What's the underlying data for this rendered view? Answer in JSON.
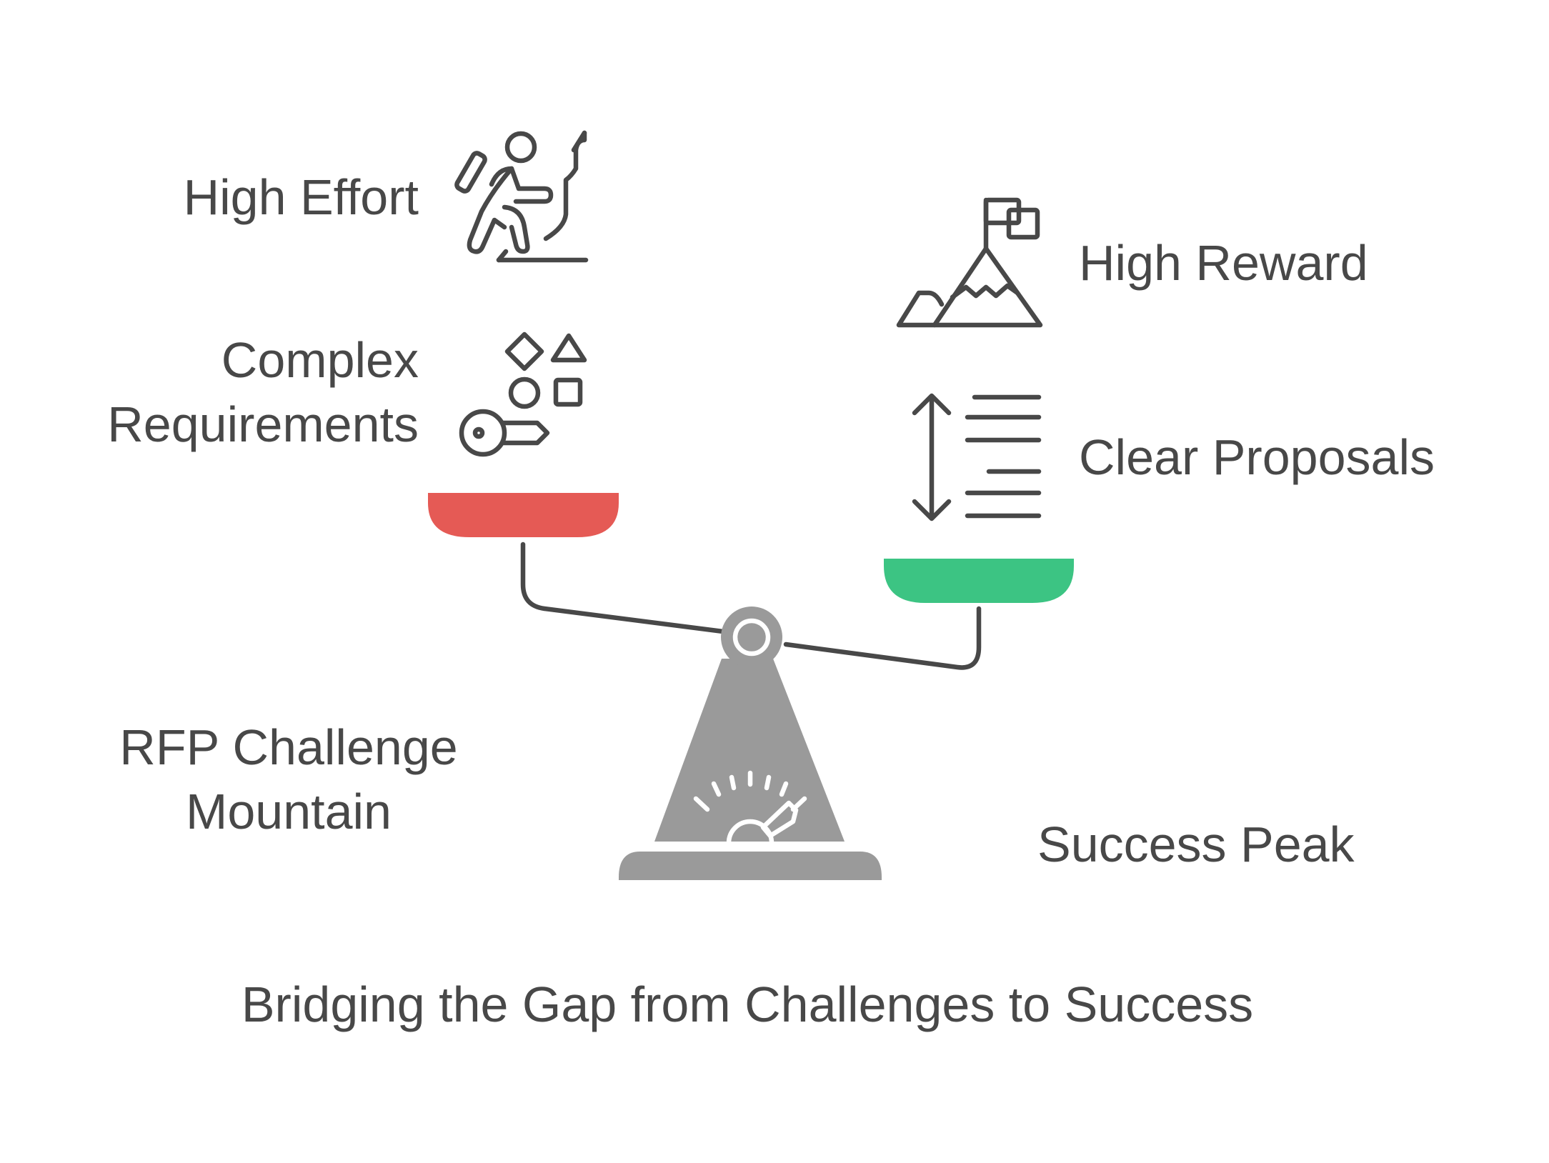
{
  "labels": {
    "high_effort": "High Effort",
    "complex_line1": "Complex",
    "complex_line2": "Requirements",
    "high_reward": "High Reward",
    "clear_proposals": "Clear Proposals",
    "rfp_line1": "RFP Challenge",
    "rfp_line2": "Mountain",
    "success_peak": "Success Peak"
  },
  "title": "Bridging the Gap from Challenges to Success",
  "colors": {
    "text": "#484848",
    "left_pan": "#e55a55",
    "right_pan": "#3cc483",
    "scale_base": "#9a9a9a",
    "beam": "#484848"
  },
  "icons": {
    "high_effort": "climber-icon",
    "complex": "shapes-key-icon",
    "high_reward": "mountain-flag-icon",
    "clear_proposals": "document-lines-icon",
    "scale_gauge": "gauge-icon"
  }
}
